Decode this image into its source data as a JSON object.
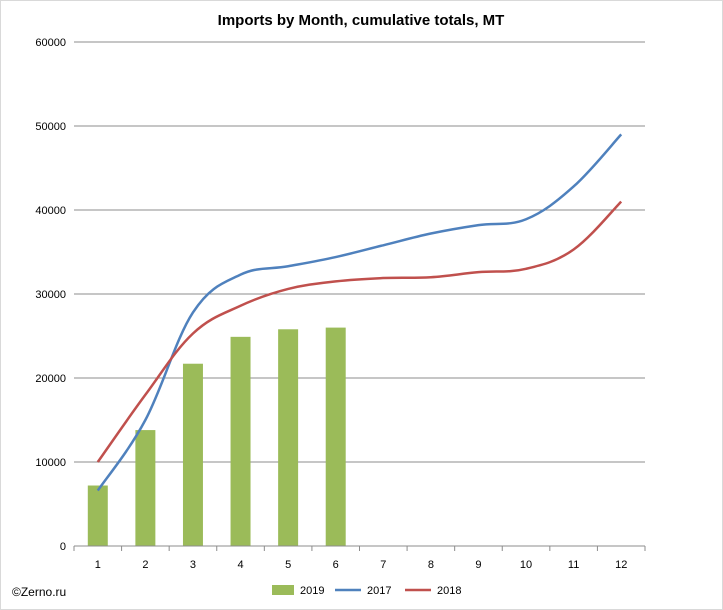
{
  "chart_data": {
    "type": "bar+line",
    "title": "Imports by Month, cumulative totals, MT",
    "categories": [
      "1",
      "2",
      "3",
      "4",
      "5",
      "6",
      "7",
      "8",
      "9",
      "10",
      "11",
      "12"
    ],
    "ylim": [
      0,
      60000
    ],
    "yticks": [
      "0",
      "10000",
      "20000",
      "30000",
      "40000",
      "50000",
      "60000"
    ],
    "grid": true,
    "legend_position": "bottom",
    "series": [
      {
        "name": "2019",
        "kind": "bar",
        "color": "#9bbb59",
        "values": [
          7200,
          13800,
          21700,
          24900,
          25800,
          26000,
          null,
          null,
          null,
          null,
          null,
          null
        ]
      },
      {
        "name": "2017",
        "kind": "line",
        "color": "#4f81bd",
        "values": [
          6600,
          15000,
          27800,
          32300,
          33300,
          34400,
          35800,
          37200,
          38200,
          38900,
          42800,
          49000
        ]
      },
      {
        "name": "2018",
        "kind": "line",
        "color": "#c0504d",
        "values": [
          10000,
          18000,
          25300,
          28600,
          30600,
          31500,
          31900,
          32000,
          32600,
          33000,
          35300,
          41000
        ]
      }
    ]
  },
  "footer": {
    "credit": "©Zerno.ru"
  }
}
